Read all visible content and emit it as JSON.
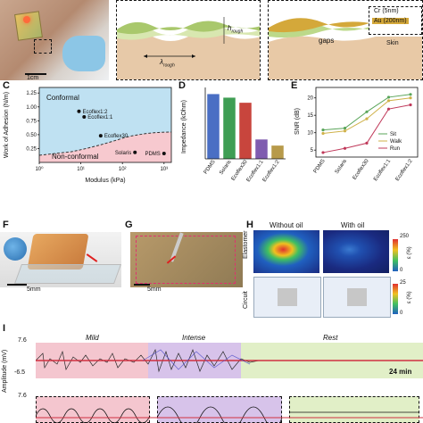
{
  "panelA": {
    "scale": "1cm"
  },
  "panelB": {
    "lambda": "λ",
    "lambda_sub": "rough",
    "h": "h",
    "h_sub": "rough"
  },
  "panelB2": {
    "layer1": "Cr (5nm)",
    "layer2": "Au (200nm)",
    "skin": "Skin",
    "gaps": "gaps"
  },
  "panelC": {
    "label": "C",
    "ylabel": "Work of Adhesion (N/m)",
    "xlabel": "Modulus (kPa)",
    "region_top": "Conformal",
    "region_bottom": "Non-conformal",
    "yticks": [
      "0.25",
      "0.50",
      "0.75",
      "1.00",
      "1.25"
    ],
    "xticks": [
      "10⁰",
      "10¹",
      "10²",
      "10³"
    ]
  },
  "panelD": {
    "label": "D",
    "ylabel": "Impedance (kOhm)"
  },
  "panelE": {
    "label": "E",
    "ylabel": "SNR (dB)"
  },
  "panelF": {
    "label": "F",
    "scale": "5mm"
  },
  "panelG": {
    "label": "G",
    "scale": "5mm"
  },
  "panelH": {
    "label": "H",
    "col1": "Without oil",
    "col2": "With oil",
    "row1": "Elastomer",
    "row2": "Circuit",
    "cb1_top": "250",
    "cb1_bot": "0",
    "cb1_unit": "ε (%)",
    "cb2_top": "25",
    "cb2_bot": "0",
    "cb2_unit": "ε (%)"
  },
  "panelI": {
    "label": "I",
    "ylabel": "Amplitude (mV)",
    "ytop": "7.6",
    "ybot": "-6.5",
    "ytop2": "7.6",
    "seg1": "Mild",
    "seg2": "Intense",
    "seg3": "Rest",
    "duration": "24 min"
  },
  "colors": {
    "pink": "#f4c6cf",
    "purple": "#d7c3ea",
    "green": "#e1efc7",
    "blue_region": "#bfe1f2",
    "pink_region": "#f7c9cf"
  },
  "chart_data": [
    {
      "type": "scatter",
      "title": "",
      "xlabel": "Modulus (kPa)",
      "ylabel": "Work of Adhesion (N/m)",
      "xscale": "log",
      "xlim": [
        1,
        1500
      ],
      "ylim": [
        0,
        1.35
      ],
      "points": [
        {
          "name": "Ecoflex1:2",
          "x": 9,
          "y": 0.92
        },
        {
          "name": "Ecoflex1:1",
          "x": 12,
          "y": 0.82
        },
        {
          "name": "Ecoflex30",
          "x": 30,
          "y": 0.48
        },
        {
          "name": "Solaris",
          "x": 200,
          "y": 0.18
        },
        {
          "name": "PDMS",
          "x": 1000,
          "y": 0.16
        }
      ]
    },
    {
      "type": "bar",
      "ylabel": "Impedance (kOhm)",
      "categories": [
        "PDMS",
        "Solaris",
        "Ecoflex30",
        "Ecoflex1:1",
        "Ecoflex1:2"
      ],
      "values": [
        127,
        120,
        110,
        38,
        26
      ],
      "colors": [
        "#4a6fc4",
        "#3f9e54",
        "#c8453d",
        "#7f5cb0",
        "#b79a4a"
      ],
      "ylim": [
        0,
        140
      ]
    },
    {
      "type": "line",
      "ylabel": "SNR (dB)",
      "categories": [
        "PDMS",
        "Solaris",
        "Ecoflex30",
        "Ecoflex1:1",
        "Ecoflex1:2"
      ],
      "ylim": [
        3,
        23
      ],
      "yticks": [
        5,
        10,
        15,
        20
      ],
      "series": [
        {
          "name": "Sit",
          "color": "#5aa55a",
          "values": [
            10.8,
            11.3,
            16,
            20.2,
            21
          ]
        },
        {
          "name": "Walk",
          "color": "#cfb24a",
          "values": [
            9.8,
            10.5,
            14,
            19.2,
            20
          ]
        },
        {
          "name": "Run",
          "color": "#c0395a",
          "values": [
            4.3,
            5.5,
            7,
            16.8,
            18
          ]
        }
      ]
    }
  ]
}
